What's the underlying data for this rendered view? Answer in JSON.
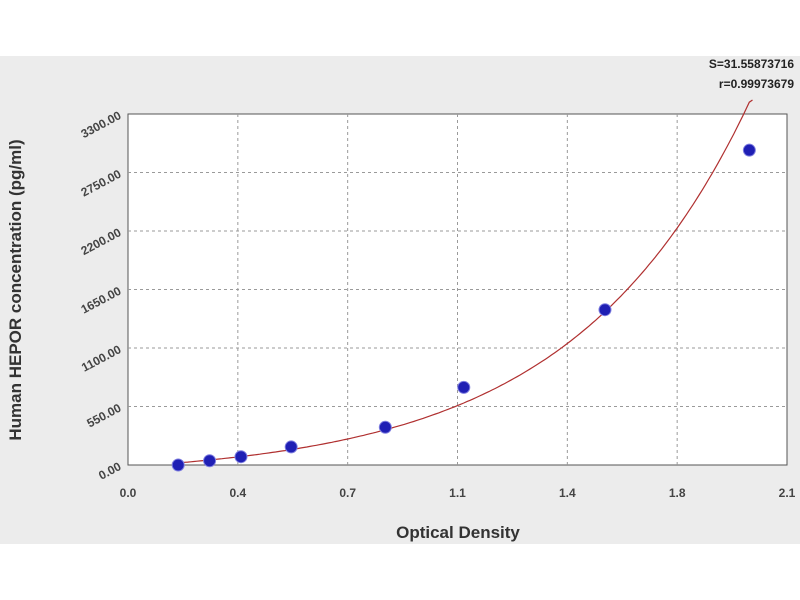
{
  "stats": {
    "s_line": "S=31.55873716",
    "r_line": "r=0.99973679"
  },
  "chart_data": {
    "type": "scatter",
    "xlabel": "Optical Density",
    "ylabel": "Human HEPOR concentration (pg/ml)",
    "xlim": [
      0.0,
      2.1
    ],
    "ylim": [
      0,
      3300
    ],
    "x_ticks": [
      "0.0",
      "0.4",
      "0.7",
      "1.1",
      "1.4",
      "1.8",
      "2.1"
    ],
    "x_tick_values": [
      0.0,
      0.35,
      0.7,
      1.05,
      1.4,
      1.75,
      2.1
    ],
    "y_ticks": [
      "0.00",
      "550.00",
      "1100.00",
      "1650.00",
      "2200.00",
      "2750.00",
      "3300.00"
    ],
    "y_tick_values": [
      0,
      550,
      1100,
      1650,
      2200,
      2750,
      3300
    ],
    "grid": true,
    "series": [
      {
        "points": [
          {
            "x": 0.16,
            "y": 0
          },
          {
            "x": 0.26,
            "y": 40
          },
          {
            "x": 0.36,
            "y": 78
          },
          {
            "x": 0.52,
            "y": 170
          },
          {
            "x": 0.82,
            "y": 355
          },
          {
            "x": 1.07,
            "y": 730
          },
          {
            "x": 1.52,
            "y": 1460
          },
          {
            "x": 1.98,
            "y": 2960
          }
        ],
        "marker_color": "#1f1fb4",
        "line_color": "#b03030"
      }
    ]
  }
}
